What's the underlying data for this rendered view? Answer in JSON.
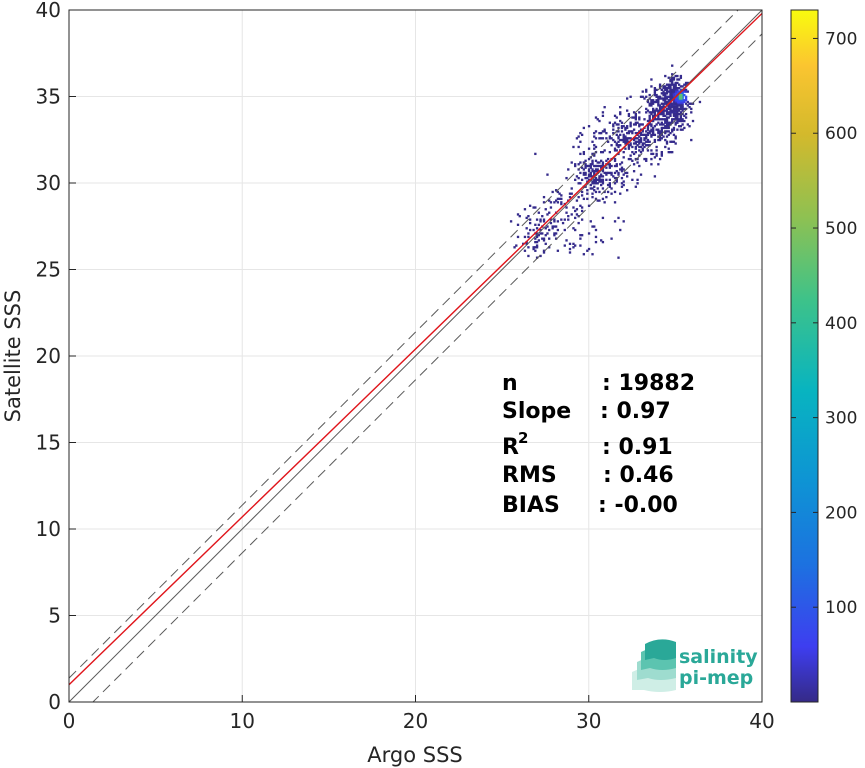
{
  "chart_data": {
    "type": "heatmap",
    "title": "",
    "xlabel": "Argo SSS",
    "ylabel": "Satellite SSS",
    "xlim": [
      0,
      40
    ],
    "ylim": [
      0,
      40
    ],
    "x_ticks": [
      "0",
      "10",
      "20",
      "30",
      "40"
    ],
    "y_ticks": [
      "0",
      "5",
      "10",
      "15",
      "20",
      "25",
      "30",
      "35",
      "40"
    ],
    "grid": true,
    "colorbar": {
      "range": [
        0,
        730
      ],
      "ticks": [
        "100",
        "200",
        "300",
        "400",
        "500",
        "600",
        "700"
      ],
      "colormap": "parula"
    },
    "reference_lines": [
      {
        "name": "1:1 line",
        "intercept": 0,
        "slope": 1,
        "color": "#5a5a5a",
        "style": "solid"
      },
      {
        "name": "upper bound",
        "intercept": 1.38,
        "slope": 1,
        "color": "#5a5a5a",
        "style": "dashed"
      },
      {
        "name": "lower bound",
        "intercept": -1.38,
        "slope": 1,
        "color": "#5a5a5a",
        "style": "dashed"
      },
      {
        "name": "regression fit",
        "intercept": 1.0,
        "slope": 0.97,
        "color": "#e0151b",
        "style": "solid"
      }
    ],
    "density_clusters": [
      {
        "x": 35.0,
        "y": 34.8,
        "sx": 0.35,
        "sy": 0.6,
        "n": 420
      },
      {
        "x": 34.2,
        "y": 34.0,
        "sx": 0.7,
        "sy": 0.9,
        "n": 360
      },
      {
        "x": 32.5,
        "y": 32.6,
        "sx": 1.0,
        "sy": 0.8,
        "n": 260
      },
      {
        "x": 30.6,
        "y": 30.4,
        "sx": 0.8,
        "sy": 0.6,
        "n": 230
      },
      {
        "x": 28.5,
        "y": 28.2,
        "sx": 1.0,
        "sy": 1.0,
        "n": 80
      },
      {
        "x": 27.0,
        "y": 27.0,
        "sx": 0.5,
        "sy": 0.6,
        "n": 70
      },
      {
        "x": 29.5,
        "y": 27.0,
        "sx": 1.2,
        "sy": 0.7,
        "n": 35
      },
      {
        "x": 30.5,
        "y": 32.5,
        "sx": 1.4,
        "sy": 0.5,
        "n": 30
      }
    ],
    "peak": {
      "x": 35.3,
      "y": 35.0,
      "count": 730
    },
    "stats": [
      {
        "label": "n",
        "value": ": 19882"
      },
      {
        "label": "Slope",
        "value": ": 0.97"
      },
      {
        "label": "R",
        "sup": "2",
        "value": ": 0.91"
      },
      {
        "label": "RMS",
        "value": ": 0.46"
      },
      {
        "label": "BIAS",
        "value": ": -0.00"
      }
    ]
  },
  "logo": {
    "line1": "salinity",
    "line2": "pi-mep",
    "colors": [
      "#2aa898",
      "#5cc4b0",
      "#9edccf",
      "#cfeee6"
    ]
  }
}
